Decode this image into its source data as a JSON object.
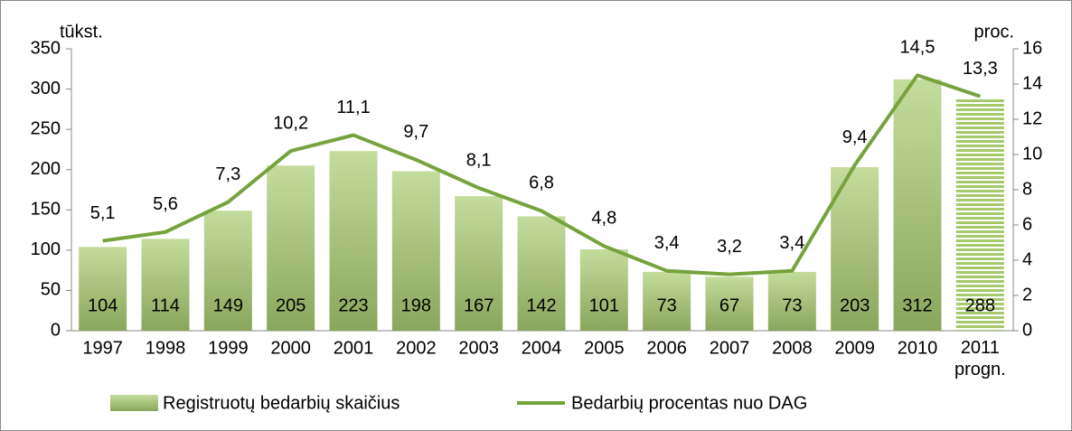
{
  "chart_data": {
    "type": "bar_line",
    "y_label": "tūkst.",
    "y2_label": "proc.",
    "categories": [
      "1997",
      "1998",
      "1999",
      "2000",
      "2001",
      "2002",
      "2003",
      "2004",
      "2005",
      "2006",
      "2007",
      "2008",
      "2009",
      "2010",
      "2011\nprogn."
    ],
    "series": [
      {
        "name": "Registruotų bedarbių skaičius",
        "type": "bar",
        "color": "#9bbb59",
        "values": [
          104,
          114,
          149,
          205,
          223,
          198,
          167,
          142,
          101,
          73,
          67,
          73,
          203,
          312,
          288
        ]
      },
      {
        "name": "Bedarbių procentas nuo DAG",
        "type": "line",
        "color": "#77a33d",
        "axis": "y2",
        "values": [
          5.1,
          5.6,
          7.3,
          10.2,
          11.1,
          9.7,
          8.1,
          6.8,
          4.8,
          3.4,
          3.2,
          3.4,
          9.4,
          14.5,
          13.3
        ],
        "value_labels": [
          "5,1",
          "5,6",
          "7,3",
          "10,2",
          "11,1",
          "9,7",
          "8,1",
          "6,8",
          "4,8",
          "3,4",
          "3,2",
          "3,4",
          "9,4",
          "14,5",
          "13,3"
        ]
      }
    ],
    "ylim": [
      0,
      350
    ],
    "yticks": [
      0,
      50,
      100,
      150,
      200,
      250,
      300,
      350
    ],
    "y2lim": [
      0,
      16
    ],
    "y2ticks": [
      0,
      2,
      4,
      6,
      8,
      10,
      12,
      14,
      16
    ],
    "legend": "bottom"
  }
}
